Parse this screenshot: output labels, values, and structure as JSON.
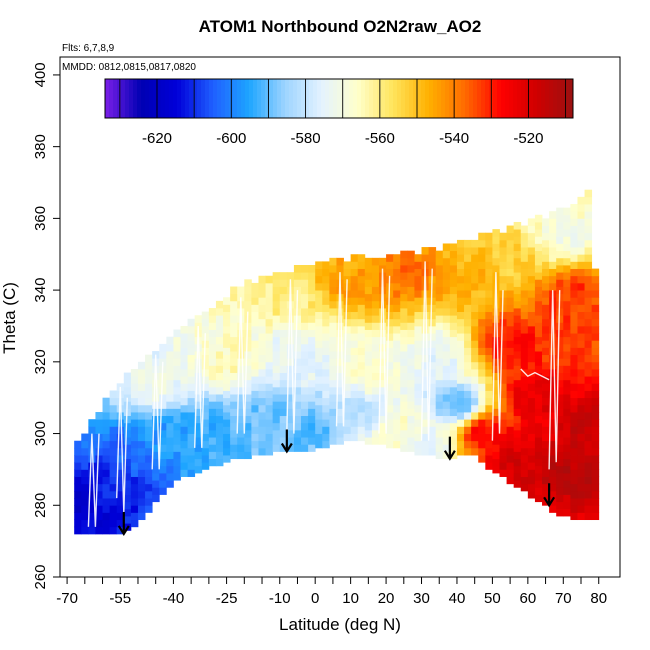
{
  "chart_data": {
    "type": "heatmap",
    "title": "ATOM1 Northbound O2N2raw_AO2",
    "xlabel": "Latitude (deg N)",
    "ylabel": "Theta (C)",
    "annotations": [
      "Flts: 6,7,8,9",
      "MMDD: 0812,0815,0817,0820"
    ],
    "xlim": [
      -72,
      86
    ],
    "ylim": [
      260,
      405
    ],
    "x_ticks": [
      -70,
      -55,
      -40,
      -25,
      -10,
      0,
      10,
      20,
      30,
      40,
      50,
      60,
      70,
      80
    ],
    "x_minor_ticks": [
      -65,
      -60,
      -50,
      -45,
      -35,
      -30,
      -20,
      -15,
      -5,
      5,
      15,
      25,
      35,
      45,
      55,
      65,
      75
    ],
    "y_ticks": [
      260,
      280,
      300,
      320,
      340,
      360,
      380,
      400
    ],
    "colorbar": {
      "range": [
        -634,
        -508
      ],
      "ticks": [
        -620,
        -600,
        -580,
        -560,
        -540,
        -520
      ],
      "colors": [
        "#7b1fe8",
        "#0000b3",
        "#0000d9",
        "#1f5fff",
        "#1ea5ff",
        "#9dd4ff",
        "#e3f2ff",
        "#ffffcc",
        "#ffe45c",
        "#ffb000",
        "#ff6a00",
        "#ff0000",
        "#cf0000",
        "#9a1111"
      ]
    },
    "boundary_top": [
      [
        -68,
        296
      ],
      [
        -62,
        304
      ],
      [
        -56,
        313
      ],
      [
        -50,
        318
      ],
      [
        -44,
        324
      ],
      [
        -38,
        328
      ],
      [
        -30,
        334
      ],
      [
        -22,
        340
      ],
      [
        -14,
        343
      ],
      [
        -6,
        345
      ],
      [
        2,
        347
      ],
      [
        10,
        348
      ],
      [
        20,
        349
      ],
      [
        30,
        350
      ],
      [
        40,
        352
      ],
      [
        50,
        355
      ],
      [
        60,
        358
      ],
      [
        68,
        361
      ],
      [
        74,
        364
      ],
      [
        77,
        367
      ]
    ],
    "boundary_bottom": [
      [
        -68,
        272
      ],
      [
        -60,
        272
      ],
      [
        -55,
        272
      ],
      [
        -50,
        275
      ],
      [
        -40,
        287
      ],
      [
        -32,
        290
      ],
      [
        -24,
        293
      ],
      [
        -16,
        294.5
      ],
      [
        -8,
        295.5
      ],
      [
        0,
        296
      ],
      [
        8,
        298
      ],
      [
        12,
        298.5
      ],
      [
        20,
        297
      ],
      [
        28,
        295
      ],
      [
        34,
        294
      ],
      [
        38,
        293
      ],
      [
        44,
        295
      ],
      [
        50,
        290
      ],
      [
        56,
        286
      ],
      [
        62,
        282
      ],
      [
        68,
        278
      ],
      [
        74,
        276
      ],
      [
        80,
        276
      ]
    ],
    "field_control_points": [
      {
        "lat": -66,
        "theta": 280,
        "value": -618
      },
      {
        "lat": -58,
        "theta": 285,
        "value": -612
      },
      {
        "lat": -52,
        "theta": 295,
        "value": -604
      },
      {
        "lat": -42,
        "theta": 300,
        "value": -596
      },
      {
        "lat": -30,
        "theta": 300,
        "value": -594
      },
      {
        "lat": -15,
        "theta": 303,
        "value": -590
      },
      {
        "lat": 0,
        "theta": 302,
        "value": -591
      },
      {
        "lat": 12,
        "theta": 305,
        "value": -580
      },
      {
        "lat": 22,
        "theta": 300,
        "value": -566
      },
      {
        "lat": 32,
        "theta": 297,
        "value": -574
      },
      {
        "lat": -45,
        "theta": 312,
        "value": -572
      },
      {
        "lat": -25,
        "theta": 320,
        "value": -565
      },
      {
        "lat": -5,
        "theta": 322,
        "value": -575
      },
      {
        "lat": 15,
        "theta": 318,
        "value": -568
      },
      {
        "lat": 35,
        "theta": 322,
        "value": -575
      },
      {
        "lat": -10,
        "theta": 338,
        "value": -560
      },
      {
        "lat": 10,
        "theta": 342,
        "value": -545
      },
      {
        "lat": 25,
        "theta": 344,
        "value": -538
      },
      {
        "lat": 45,
        "theta": 343,
        "value": -548
      },
      {
        "lat": 55,
        "theta": 348,
        "value": -553
      },
      {
        "lat": 70,
        "theta": 355,
        "value": -570
      },
      {
        "lat": 72,
        "theta": 338,
        "value": -532
      },
      {
        "lat": 55,
        "theta": 325,
        "value": -528
      },
      {
        "lat": 62,
        "theta": 310,
        "value": -522
      },
      {
        "lat": 48,
        "theta": 300,
        "value": -526
      },
      {
        "lat": 58,
        "theta": 292,
        "value": -518
      },
      {
        "lat": 72,
        "theta": 290,
        "value": -514
      },
      {
        "lat": 78,
        "theta": 300,
        "value": -516
      },
      {
        "lat": 40,
        "theta": 308,
        "value": -590
      }
    ],
    "flight_profiles": [
      {
        "lat": [
          -64,
          -63,
          -62,
          -61
        ],
        "theta": [
          274,
          300,
          274,
          300
        ]
      },
      {
        "lat": [
          -56,
          -55,
          -54,
          -53
        ],
        "theta": [
          282,
          313,
          278,
          310
        ]
      },
      {
        "lat": [
          -46,
          -45,
          -44,
          -43
        ],
        "theta": [
          290,
          322,
          290,
          320
        ]
      },
      {
        "lat": [
          -34,
          -33,
          -32,
          -31
        ],
        "theta": [
          296,
          330,
          296,
          328
        ]
      },
      {
        "lat": [
          -22,
          -21,
          -20,
          -19
        ],
        "theta": [
          300,
          338,
          300,
          334
        ]
      },
      {
        "lat": [
          -8,
          -7,
          -6,
          -5
        ],
        "theta": [
          300,
          343,
          300,
          340
        ]
      },
      {
        "lat": [
          6,
          7,
          8,
          9
        ],
        "theta": [
          302,
          345,
          302,
          343
        ]
      },
      {
        "lat": [
          18,
          19,
          20,
          21
        ],
        "theta": [
          300,
          346,
          300,
          344
        ]
      },
      {
        "lat": [
          30,
          31,
          32,
          33
        ],
        "theta": [
          298,
          348,
          298,
          346
        ]
      },
      {
        "lat": [
          50,
          51,
          52,
          53
        ],
        "theta": [
          298,
          345,
          300,
          340
        ]
      },
      {
        "lat": [
          58,
          60,
          62,
          66
        ],
        "theta": [
          318,
          316,
          317,
          315
        ]
      },
      {
        "lat": [
          66,
          67,
          68,
          69
        ],
        "theta": [
          290,
          340,
          292,
          340
        ]
      }
    ],
    "arrows": [
      {
        "lat": -54,
        "theta": 272
      },
      {
        "lat": -8,
        "theta": 295
      },
      {
        "lat": 38,
        "theta": 293
      },
      {
        "lat": 66,
        "theta": 280
      }
    ]
  }
}
